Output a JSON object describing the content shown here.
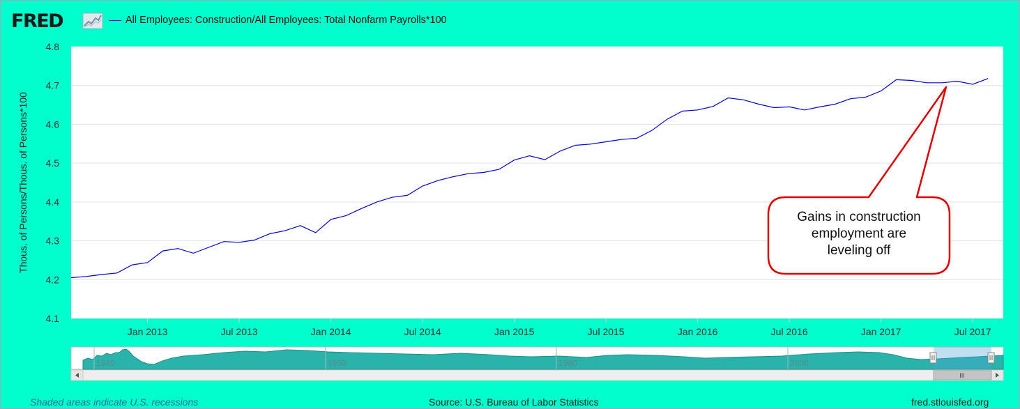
{
  "header": {
    "logo_text": "FRED",
    "legend_label": "All Employees: Construction/All Employees: Total Nonfarm Payrolls*100",
    "legend_color": "#0000dd"
  },
  "colors": {
    "background": "#00ffcc",
    "plot_background": "#ffffff",
    "line": "#0000dd",
    "callout_border": "#e00000",
    "navigator_fill": "#2ab3ab"
  },
  "annotation": {
    "lines": [
      "Gains in construction",
      "employment are",
      "leveling off"
    ],
    "points_to": "2017-05"
  },
  "navigator": {
    "labels": [
      "1940",
      "1960",
      "1980",
      "2000"
    ],
    "scrollbar_grip": "III"
  },
  "footer": {
    "left": "Shaded areas indicate U.S. recessions",
    "center": "Source: U.S. Bureau of Labor Statistics",
    "right": "fred.stlouisfed.org"
  },
  "chart_data": {
    "type": "line",
    "title": "",
    "xlabel": "",
    "ylabel": "Thous. of Persons/Thous. of Persons*100",
    "ylim": [
      4.1,
      4.8
    ],
    "yticks": [
      "4.1",
      "4.2",
      "4.3",
      "4.4",
      "4.5",
      "4.6",
      "4.7",
      "4.8"
    ],
    "xlim": [
      "2012-08",
      "2017-09"
    ],
    "xticks": [
      {
        "date": "2013-01",
        "label": "Jan 2013"
      },
      {
        "date": "2013-07",
        "label": "Jul 2013"
      },
      {
        "date": "2014-01",
        "label": "Jan 2014"
      },
      {
        "date": "2014-07",
        "label": "Jul 2014"
      },
      {
        "date": "2015-01",
        "label": "Jan 2015"
      },
      {
        "date": "2015-07",
        "label": "Jul 2015"
      },
      {
        "date": "2016-01",
        "label": "Jan 2016"
      },
      {
        "date": "2016-07",
        "label": "Jul 2016"
      },
      {
        "date": "2017-01",
        "label": "Jan 2017"
      },
      {
        "date": "2017-07",
        "label": "Jul 2017"
      }
    ],
    "grid": true,
    "legend": "top-left",
    "series": [
      {
        "name": "All Employees: Construction/All Employees: Total Nonfarm Payrolls*100",
        "x": [
          "2012-08",
          "2012-09",
          "2012-10",
          "2012-11",
          "2012-12",
          "2013-01",
          "2013-02",
          "2013-03",
          "2013-04",
          "2013-05",
          "2013-06",
          "2013-07",
          "2013-08",
          "2013-09",
          "2013-10",
          "2013-11",
          "2013-12",
          "2014-01",
          "2014-02",
          "2014-03",
          "2014-04",
          "2014-05",
          "2014-06",
          "2014-07",
          "2014-08",
          "2014-09",
          "2014-10",
          "2014-11",
          "2014-12",
          "2015-01",
          "2015-02",
          "2015-03",
          "2015-04",
          "2015-05",
          "2015-06",
          "2015-07",
          "2015-08",
          "2015-09",
          "2015-10",
          "2015-11",
          "2015-12",
          "2016-01",
          "2016-02",
          "2016-03",
          "2016-04",
          "2016-05",
          "2016-06",
          "2016-07",
          "2016-08",
          "2016-09",
          "2016-10",
          "2016-11",
          "2016-12",
          "2017-01",
          "2017-02",
          "2017-03",
          "2017-04",
          "2017-05",
          "2017-06",
          "2017-07",
          "2017-08"
        ],
        "values": [
          4.205,
          4.208,
          4.213,
          4.217,
          4.238,
          4.244,
          4.274,
          4.28,
          4.268,
          4.283,
          4.298,
          4.296,
          4.302,
          4.318,
          4.326,
          4.339,
          4.321,
          4.355,
          4.365,
          4.383,
          4.4,
          4.412,
          4.417,
          4.441,
          4.455,
          4.465,
          4.473,
          4.476,
          4.484,
          4.508,
          4.519,
          4.509,
          4.531,
          4.546,
          4.549,
          4.555,
          4.561,
          4.564,
          4.584,
          4.613,
          4.634,
          4.637,
          4.646,
          4.668,
          4.663,
          4.652,
          4.643,
          4.645,
          4.637,
          4.645,
          4.652,
          4.666,
          4.67,
          4.686,
          4.715,
          4.713,
          4.707,
          4.707,
          4.711,
          4.703,
          4.718
        ]
      }
    ]
  }
}
